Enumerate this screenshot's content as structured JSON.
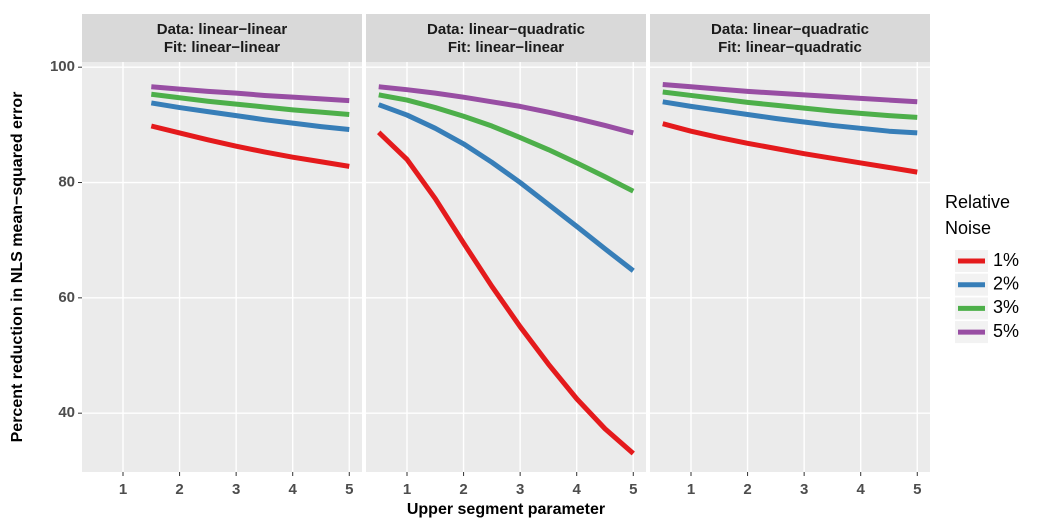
{
  "chart_data": [
    {
      "type": "line",
      "title": "Data: linear−linear",
      "subtitle": "Fit: linear−linear",
      "x": [
        1.5,
        2,
        2.5,
        3,
        3.5,
        4,
        4.5,
        5
      ],
      "series": [
        {
          "name": "1%",
          "color": "#e41a1c",
          "values": [
            89.8,
            88.6,
            87.4,
            86.3,
            85.3,
            84.4,
            83.6,
            82.8
          ]
        },
        {
          "name": "2%",
          "color": "#377eb8",
          "values": [
            93.8,
            93.0,
            92.3,
            91.6,
            90.9,
            90.3,
            89.7,
            89.2
          ]
        },
        {
          "name": "3%",
          "color": "#4daf4a",
          "values": [
            95.3,
            94.7,
            94.1,
            93.6,
            93.1,
            92.6,
            92.2,
            91.8
          ]
        },
        {
          "name": "5%",
          "color": "#984ea3",
          "values": [
            96.6,
            96.2,
            95.8,
            95.5,
            95.1,
            94.8,
            94.5,
            94.2
          ]
        }
      ],
      "xlim": [
        0.275,
        5.225
      ],
      "xticks": [
        1,
        2,
        3,
        4,
        5
      ],
      "ylim": [
        29.8,
        100.9
      ],
      "yticks": [
        40,
        60,
        80,
        100
      ],
      "grid": true
    },
    {
      "type": "line",
      "title": "Data: linear−quadratic",
      "subtitle": "Fit: linear−linear",
      "x": [
        0.5,
        1,
        1.5,
        2,
        2.5,
        3,
        3.5,
        4,
        4.5,
        5
      ],
      "series": [
        {
          "color": "#e41a1c",
          "values": [
            88.7,
            84.0,
            77.2,
            69.5,
            62.0,
            55.0,
            48.5,
            42.5,
            37.3,
            33.0
          ]
        },
        {
          "color": "#377eb8",
          "values": [
            93.5,
            91.7,
            89.4,
            86.7,
            83.5,
            80.0,
            76.2,
            72.4,
            68.5,
            64.7
          ]
        },
        {
          "color": "#4daf4a",
          "values": [
            95.2,
            94.3,
            93.0,
            91.5,
            89.8,
            87.8,
            85.7,
            83.4,
            81.0,
            78.5
          ]
        },
        {
          "color": "#984ea3",
          "values": [
            96.6,
            96.1,
            95.5,
            94.8,
            94.0,
            93.2,
            92.2,
            91.1,
            89.9,
            88.6
          ]
        }
      ],
      "xlim": [
        0.275,
        5.225
      ],
      "xticks": [
        1,
        2,
        3,
        4,
        5
      ],
      "ylim": [
        29.8,
        100.9
      ],
      "yticks": [
        40,
        60,
        80,
        100
      ],
      "grid": true
    },
    {
      "type": "line",
      "title": "Data: linear−quadratic",
      "subtitle": "Fit: linear−quadratic",
      "x": [
        0.5,
        1,
        1.5,
        2,
        2.5,
        3,
        3.5,
        4,
        4.5,
        5
      ],
      "series": [
        {
          "color": "#e41a1c",
          "values": [
            90.2,
            88.9,
            87.8,
            86.8,
            85.9,
            85.0,
            84.2,
            83.4,
            82.6,
            81.8
          ]
        },
        {
          "color": "#377eb8",
          "values": [
            94.0,
            93.2,
            92.5,
            91.8,
            91.1,
            90.5,
            89.9,
            89.4,
            88.9,
            88.6
          ]
        },
        {
          "color": "#4daf4a",
          "values": [
            95.7,
            95.1,
            94.5,
            93.9,
            93.4,
            92.9,
            92.4,
            92.0,
            91.6,
            91.3
          ]
        },
        {
          "color": "#984ea3",
          "values": [
            97.0,
            96.6,
            96.2,
            95.8,
            95.5,
            95.2,
            94.9,
            94.6,
            94.3,
            94.0
          ]
        }
      ],
      "xlim": [
        0.275,
        5.225
      ],
      "xticks": [
        1,
        2,
        3,
        4,
        5
      ],
      "ylim": [
        29.8,
        100.9
      ],
      "yticks": [
        40,
        60,
        80,
        100
      ],
      "grid": true
    }
  ],
  "x_label": "Upper segment parameter",
  "y_label": "Percent reduction in NLS mean−squared error",
  "legend_title": "Relative Noise"
}
